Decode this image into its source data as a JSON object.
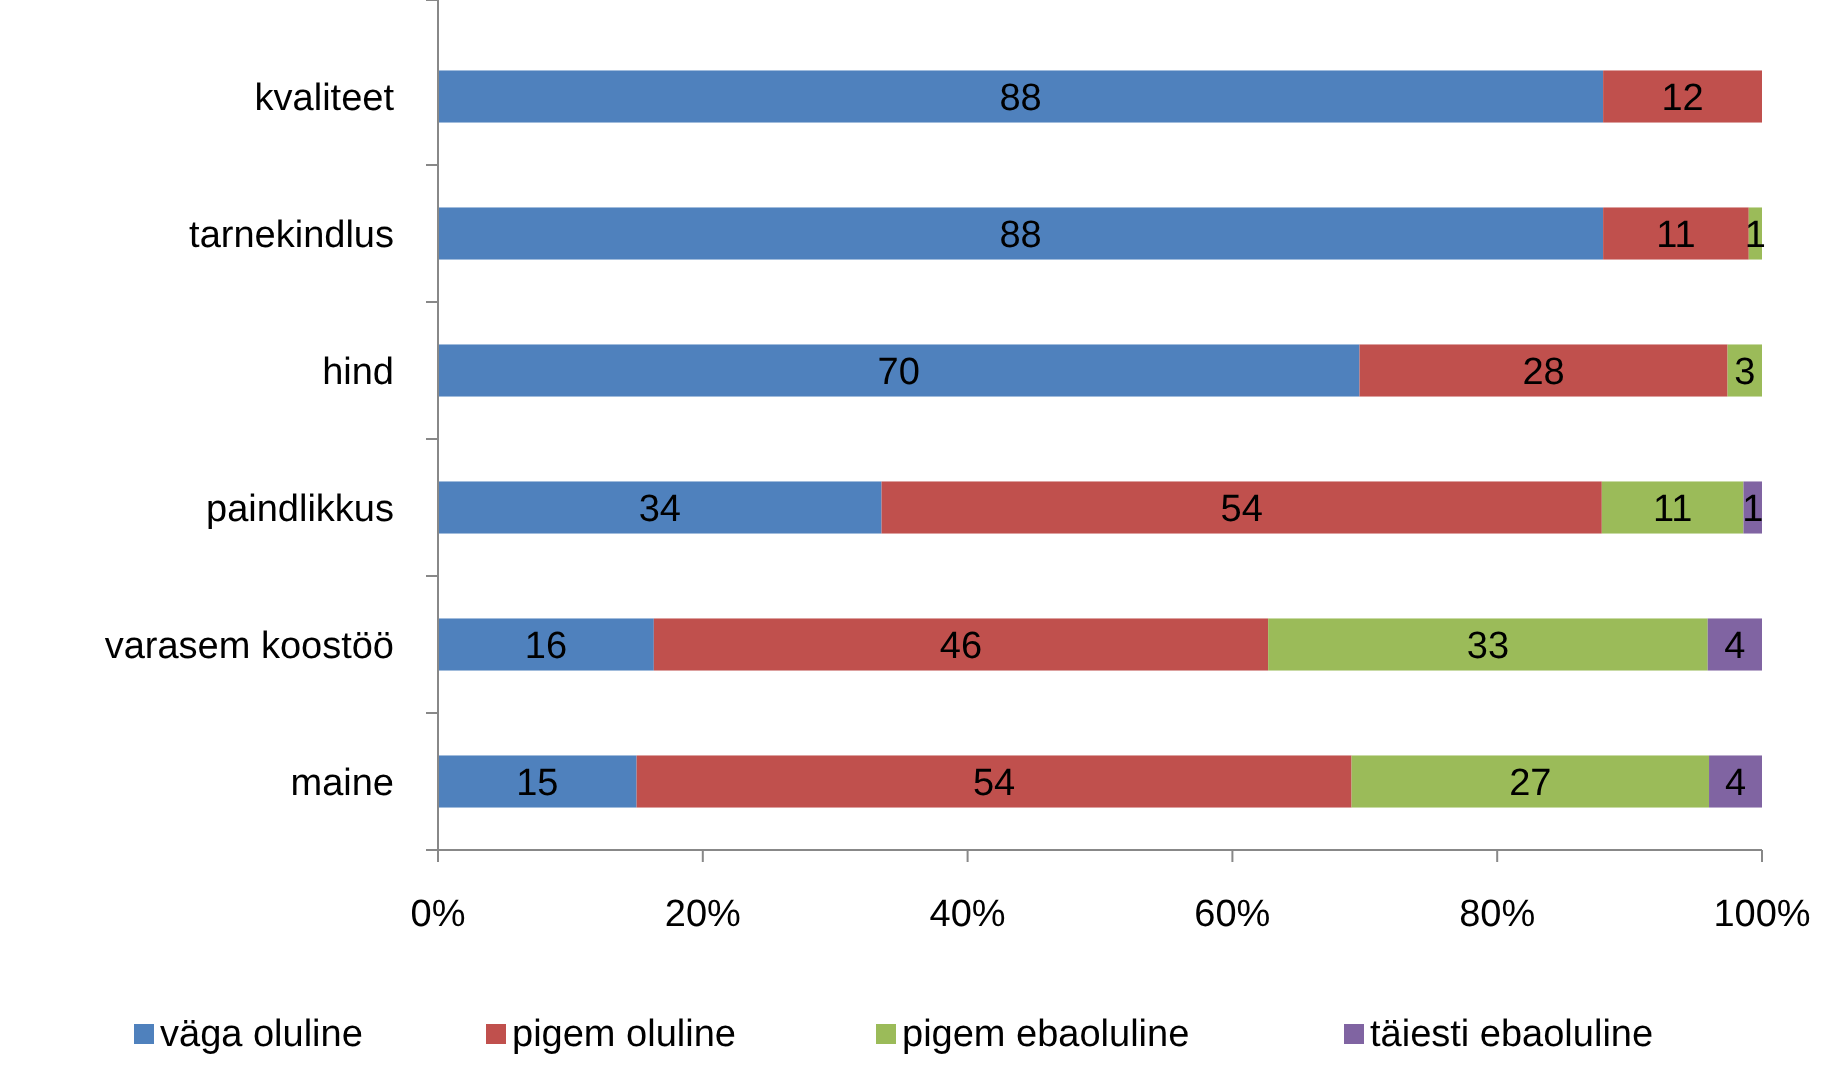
{
  "chart_data": {
    "type": "bar",
    "orientation": "horizontal",
    "stacked": true,
    "categories": [
      "kvaliteet",
      "tarnekindlus",
      "hind",
      "paindlikkus",
      "varasem koostöö",
      "maine"
    ],
    "series": [
      {
        "name": "väga oluline",
        "color": "#4f81bd",
        "values": [
          88,
          88,
          69.6,
          33.5,
          16.3,
          15
        ],
        "value_labels": [
          "88",
          "88",
          "70",
          "34",
          "16",
          "15"
        ]
      },
      {
        "name": "pigem oluline",
        "color": "#c0504d",
        "values": [
          12,
          11,
          27.8,
          54.4,
          46.4,
          54
        ],
        "value_labels": [
          "12",
          "11",
          "28",
          "54",
          "46",
          "54"
        ]
      },
      {
        "name": "pigem ebaoluline",
        "color": "#9bbb59",
        "values": [
          null,
          1,
          2.6,
          10.7,
          33.2,
          27
        ],
        "value_labels": [
          null,
          "1",
          "3",
          "11",
          "33",
          "27"
        ]
      },
      {
        "name": "täiesti ebaoluline",
        "color": "#8064a2",
        "values": [
          null,
          null,
          null,
          1.4,
          4.1,
          4
        ],
        "value_labels": [
          null,
          null,
          null,
          "1",
          "4",
          "4"
        ]
      }
    ],
    "xlim": [
      0,
      100
    ],
    "xticks": [
      {
        "value": 0,
        "label": "0%"
      },
      {
        "value": 20,
        "label": "20%"
      },
      {
        "value": 40,
        "label": "40%"
      },
      {
        "value": 60,
        "label": "60%"
      },
      {
        "value": 80,
        "label": "80%"
      },
      {
        "value": 100,
        "label": "100%"
      }
    ],
    "grid": false,
    "legend": "bottom"
  }
}
